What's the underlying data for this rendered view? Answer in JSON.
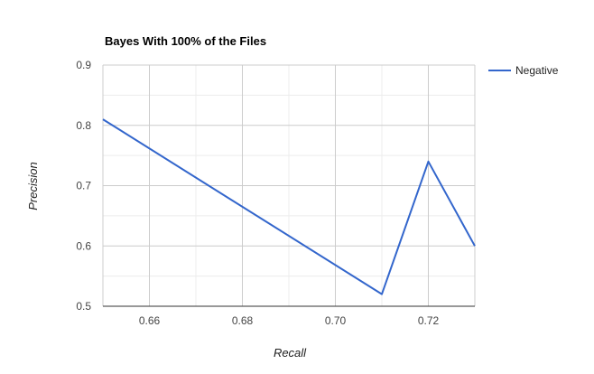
{
  "chart_data": {
    "type": "line",
    "title": "Bayes With 100% of the Files",
    "xlabel": "Recall",
    "ylabel": "Precision",
    "xlim": [
      0.65,
      0.73
    ],
    "ylim": [
      0.5,
      0.9
    ],
    "x_ticks": [
      0.66,
      0.68,
      0.7,
      0.72
    ],
    "x_tick_labels": [
      "0.66",
      "0.68",
      "0.70",
      "0.72"
    ],
    "y_ticks": [
      0.5,
      0.6,
      0.7,
      0.8,
      0.9
    ],
    "y_tick_labels": [
      "0.5",
      "0.6",
      "0.7",
      "0.8",
      "0.9"
    ],
    "grid": true,
    "legend_position": "right",
    "series": [
      {
        "name": "Negative",
        "color": "#3366cc",
        "x": [
          0.65,
          0.71,
          0.72,
          0.73
        ],
        "y": [
          0.81,
          0.52,
          0.74,
          0.6
        ]
      }
    ]
  }
}
